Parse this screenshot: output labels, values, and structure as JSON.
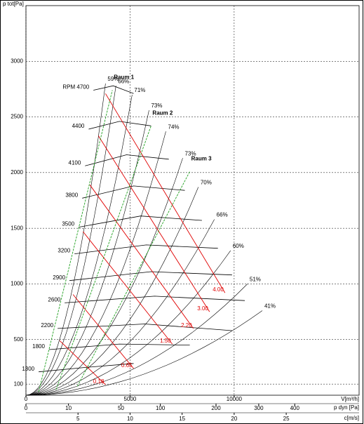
{
  "chart_data": {
    "type": "fan-map",
    "y_label": "p tot[Pa]",
    "x_label": "V[m³/h]",
    "pdyn_label": "p dyn [Pa]",
    "c_label": "c[m/s]",
    "xlim": [
      0,
      16000
    ],
    "xticks": [
      0,
      5000,
      10000
    ],
    "ylim": [
      0,
      3500
    ],
    "yticks": [
      100,
      500,
      1000,
      1500,
      2000,
      2500,
      3000
    ],
    "pdyn_ticks": [
      0,
      10,
      50,
      100,
      200,
      300,
      400
    ],
    "c_lim": [
      0,
      32
    ],
    "c_ticks": [
      5,
      10,
      15,
      20,
      25
    ],
    "grid": true,
    "colors": {
      "rpm": "#000000",
      "power": "#e00000",
      "room": "#1fa01f",
      "system": "#000000"
    },
    "rpm_curves": [
      {
        "name": "RPM 4700",
        "x": [
          3240,
          4190,
          5170
        ],
        "y": [
          2740,
          2780,
          2710
        ]
      },
      {
        "name": "4400",
        "x": [
          3010,
          4490,
          6010
        ],
        "y": [
          2390,
          2460,
          2420
        ]
      },
      {
        "name": "4100",
        "x": [
          2840,
          4830,
          6860
        ],
        "y": [
          2060,
          2160,
          2120
        ]
      },
      {
        "name": "3800",
        "x": [
          2700,
          5170,
          7630
        ],
        "y": [
          1770,
          1880,
          1840
        ]
      },
      {
        "name": "3500",
        "x": [
          2530,
          5510,
          8450
        ],
        "y": [
          1510,
          1610,
          1570
        ]
      },
      {
        "name": "3200",
        "x": [
          2330,
          5780,
          9220
        ],
        "y": [
          1270,
          1350,
          1320
        ]
      },
      {
        "name": "2900",
        "x": [
          2090,
          6010,
          9900
        ],
        "y": [
          1030,
          1110,
          1080
        ]
      },
      {
        "name": "2600",
        "x": [
          1860,
          6180,
          10510
        ],
        "y": [
          830,
          890,
          850
        ]
      },
      {
        "name": "2200",
        "x": [
          1520,
          5710,
          9900
        ],
        "y": [
          600,
          640,
          580
        ]
      },
      {
        "name": "1800",
        "x": [
          1110,
          4490,
          7870
        ],
        "y": [
          410,
          460,
          450
        ]
      },
      {
        "name": "1300",
        "x": [
          610,
          2870,
          5170
        ],
        "y": [
          210,
          250,
          285
        ]
      }
    ],
    "efficiency": [
      {
        "value": 59,
        "label": "59%",
        "x": 3820,
        "y": 2800
      },
      {
        "value": 66,
        "label": "66%",
        "x": 4320,
        "y": 2780
      },
      {
        "value": 71,
        "label": "71%",
        "x": 5100,
        "y": 2700
      },
      {
        "value": 73,
        "label": "73%",
        "x": 5910,
        "y": 2560
      },
      {
        "value": 74,
        "label": "74%",
        "x": 6720,
        "y": 2370
      },
      {
        "value": 73,
        "label": "73%",
        "x": 7530,
        "y": 2130
      },
      {
        "value": 70,
        "label": "70%",
        "x": 8280,
        "y": 1870
      },
      {
        "value": 66,
        "label": "66%",
        "x": 9050,
        "y": 1580
      },
      {
        "value": 60,
        "label": "60%",
        "x": 9830,
        "y": 1300
      },
      {
        "value": 51,
        "label": "51%",
        "x": 10640,
        "y": 1000
      },
      {
        "value": 41,
        "label": "41%",
        "x": 11350,
        "y": 760
      }
    ],
    "power": [
      {
        "value": 4,
        "label": "4.00",
        "x": [
          3820,
          9560
        ],
        "y": [
          2710,
          920
        ]
      },
      {
        "value": 3,
        "label": "3.00",
        "x": [
          3480,
          8820
        ],
        "y": [
          2330,
          750
        ]
      },
      {
        "value": 2.2,
        "label": "2.20",
        "x": [
          3070,
          8040
        ],
        "y": [
          1890,
          600
        ]
      },
      {
        "value": 1.5,
        "label": "1.50",
        "x": [
          2740,
          7030
        ],
        "y": [
          1470,
          460
        ]
      },
      {
        "value": 0.65,
        "label": "0.65",
        "x": [
          2260,
          5170
        ],
        "y": [
          905,
          240
        ]
      },
      {
        "value": 0.18,
        "label": "0.18",
        "x": [
          1620,
          3820
        ],
        "y": [
          490,
          95
        ]
      }
    ],
    "rooms": [
      {
        "name": "Raum 1",
        "x": [
          610,
          4150
        ],
        "y": [
          30,
          2740
        ]
      },
      {
        "name": "Raum 2",
        "x": [
          1450,
          6010
        ],
        "y": [
          50,
          2420
        ]
      },
      {
        "name": "Raum 3",
        "x": [
          2470,
          7870
        ],
        "y": [
          80,
          2010
        ]
      }
    ]
  }
}
